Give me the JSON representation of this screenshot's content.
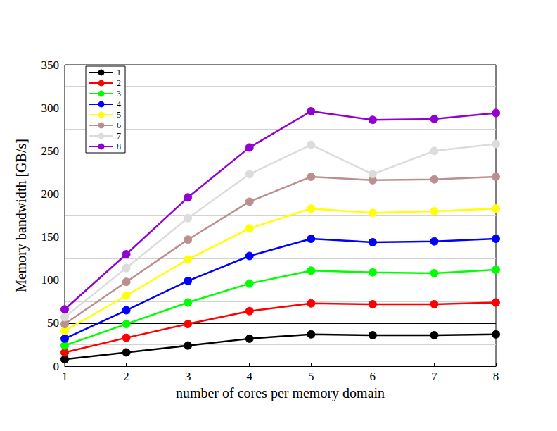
{
  "chart_data": {
    "type": "line",
    "xlabel": "number of cores per memory domain",
    "ylabel": "Memory bandwidth [GB/s]",
    "x": [
      1,
      2,
      3,
      4,
      5,
      6,
      7,
      8
    ],
    "xlim": [
      1,
      8
    ],
    "xticks": [
      1,
      2,
      3,
      4,
      5,
      6,
      7,
      8
    ],
    "ylim": [
      0,
      350
    ],
    "yticks": [
      0,
      50,
      100,
      150,
      200,
      250,
      300,
      350
    ],
    "grid": true,
    "legend": "upper left",
    "marker": "circle",
    "series": [
      {
        "name": "1",
        "color": "#000000",
        "values": [
          8,
          16,
          24,
          32,
          37,
          36,
          36,
          37
        ]
      },
      {
        "name": "2",
        "color": "#ff0000",
        "values": [
          16,
          33,
          49,
          64,
          73,
          72,
          72,
          74
        ]
      },
      {
        "name": "3",
        "color": "#00ff00",
        "values": [
          24,
          49,
          74,
          96,
          111,
          109,
          108,
          112
        ]
      },
      {
        "name": "4",
        "color": "#0000ff",
        "values": [
          32,
          65,
          99,
          128,
          148,
          144,
          145,
          148
        ]
      },
      {
        "name": "5",
        "color": "#ffff00",
        "values": [
          41,
          82,
          124,
          160,
          183,
          178,
          180,
          183
        ]
      },
      {
        "name": "6",
        "color": "#bc8f8f",
        "values": [
          49,
          98,
          147,
          191,
          220,
          216,
          217,
          220
        ]
      },
      {
        "name": "7",
        "color": "#dcdcdc",
        "values": [
          57,
          114,
          172,
          223,
          257,
          223,
          250,
          258
        ]
      },
      {
        "name": "8",
        "color": "#9400d3",
        "values": [
          66,
          130,
          196,
          254,
          296,
          286,
          287,
          294
        ]
      }
    ]
  }
}
